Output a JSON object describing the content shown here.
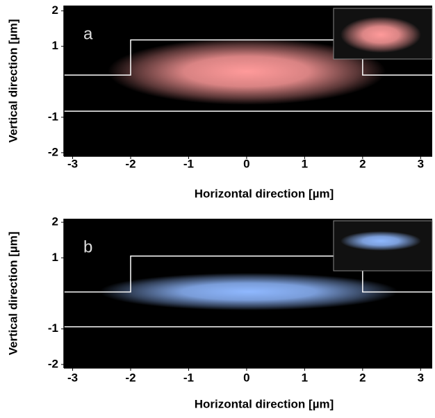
{
  "chart_data": [
    {
      "type": "heatmap",
      "panel_label": "a",
      "xlabel": "Horizontal direction [µm]",
      "ylabel": "Vertical direction [µm]",
      "xlim": [
        -3.15,
        3.2
      ],
      "ylim": [
        -2.1,
        2.15
      ],
      "xticks": [
        -3,
        -2,
        -1,
        0,
        1,
        2,
        3
      ],
      "yticks": [
        -2,
        -1,
        1,
        2
      ],
      "color": "#ff9a9a",
      "outline": [
        {
          "x": [
            -3.15,
            -2,
            -2,
            2,
            2,
            3.2
          ],
          "y": [
            0.19,
            0.19,
            1.18,
            1.18,
            0.19,
            0.19
          ]
        },
        {
          "x": [
            -3.15,
            3.2
          ],
          "y": [
            -0.83,
            -0.83
          ]
        }
      ]
    },
    {
      "type": "heatmap",
      "panel_label": "b",
      "xlabel": "Horizontal direction [µm]",
      "ylabel": "Vertical direction [µm]",
      "xlim": [
        -3.15,
        3.2
      ],
      "ylim": [
        -2.1,
        2.1
      ],
      "xticks": [
        -3,
        -2,
        -1,
        0,
        1,
        2,
        3
      ],
      "yticks": [
        -2,
        -1,
        1,
        2
      ],
      "color": "#8fb8ff",
      "outline": [
        {
          "x": [
            -3.15,
            -2,
            -2,
            2,
            2,
            3.2
          ],
          "y": [
            0.04,
            0.04,
            1.05,
            1.05,
            0.04,
            0.04
          ]
        },
        {
          "x": [
            -3.15,
            3.2
          ],
          "y": [
            -0.94,
            -0.94
          ]
        }
      ]
    }
  ]
}
